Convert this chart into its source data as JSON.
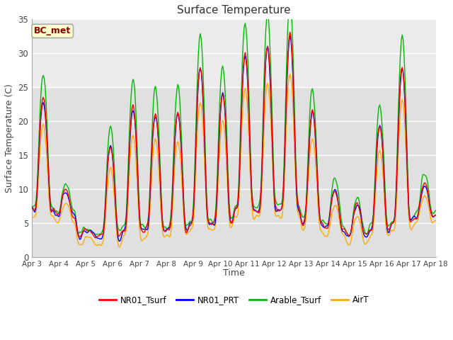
{
  "title": "Surface Temperature",
  "ylabel": "Surface Temperature (C)",
  "xlabel": "Time",
  "annotation": "BC_met",
  "ylim": [
    0,
    35
  ],
  "background_color": "#ffffff",
  "plot_bg_lower": "#e0e0e0",
  "plot_bg_upper": "#ebebeb",
  "grid_color": "#ffffff",
  "upper_band_start": 25,
  "series_colors": {
    "NR01_Tsurf": "#ff0000",
    "NR01_PRT": "#0000ff",
    "Arable_Tsurf": "#00bb00",
    "AirT": "#ffaa00"
  },
  "legend_labels": [
    "NR01_Tsurf",
    "NR01_PRT",
    "Arable_Tsurf",
    "AirT"
  ],
  "x_tick_labels": [
    "Apr 3",
    "Apr 4",
    "Apr 5",
    "Apr 6",
    "Apr 7",
    "Apr 8",
    "Apr 9",
    "Apr 10",
    "Apr 11",
    "Apr 12",
    "Apr 13",
    "Apr 14",
    "Apr 15",
    "Apr 16",
    "Apr 17",
    "Apr 18"
  ],
  "x_tick_positions": [
    0,
    24,
    48,
    72,
    96,
    120,
    144,
    168,
    192,
    216,
    240,
    264,
    288,
    312,
    336,
    360
  ],
  "yticks": [
    0,
    5,
    10,
    15,
    20,
    25,
    30,
    35
  ],
  "figsize": [
    6.4,
    4.8
  ],
  "dpi": 100
}
